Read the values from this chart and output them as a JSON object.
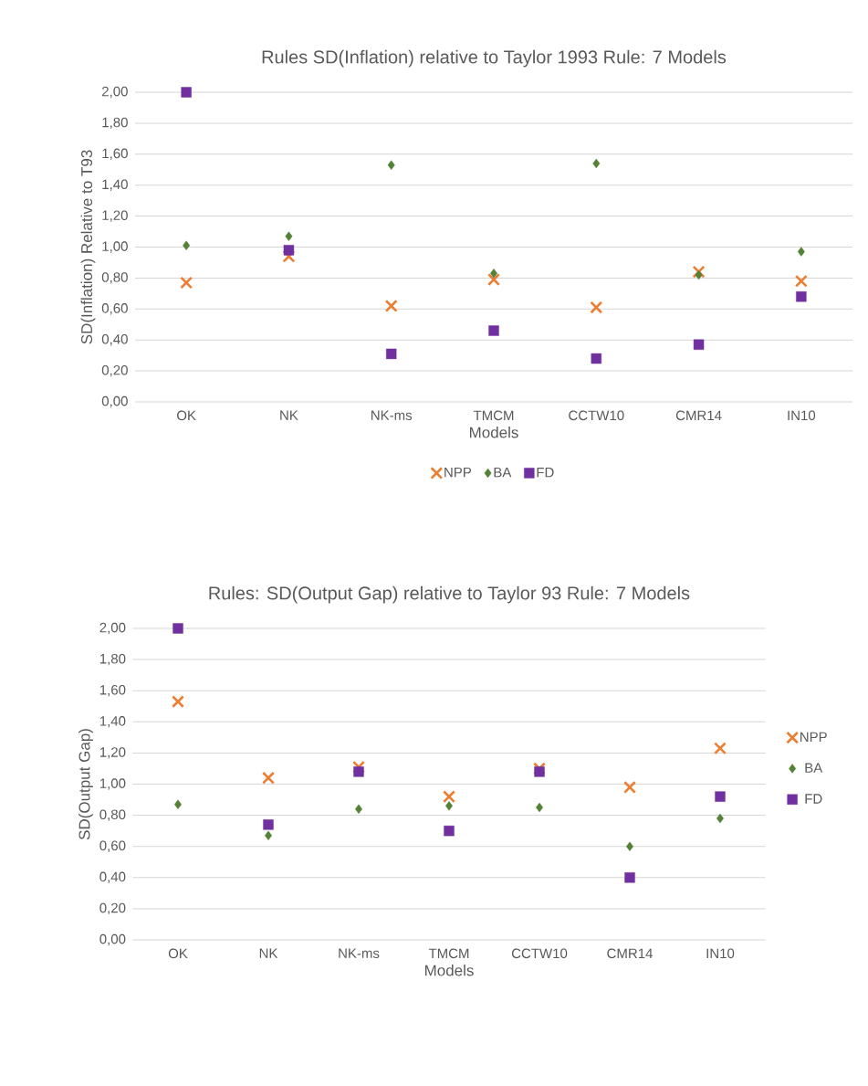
{
  "chart_data": [
    {
      "type": "scatter",
      "title": "Rules SD(Inflation) relative to Taylor 1993 Rule: 7 Models",
      "xlabel": "Models",
      "ylabel": "SD(Inflation) Relative to T93",
      "categories": [
        "OK",
        "NK",
        "NK-ms",
        "TMCM",
        "CCTW10",
        "CMR14",
        "IN10"
      ],
      "series": [
        {
          "name": "NPP",
          "color": "#ed7d31",
          "marker": "cross",
          "values": [
            0.77,
            0.94,
            0.62,
            0.79,
            0.61,
            0.84,
            0.78
          ]
        },
        {
          "name": "BA",
          "color": "#548235",
          "marker": "diamond",
          "values": [
            1.01,
            1.07,
            1.53,
            0.83,
            1.54,
            0.82,
            0.97
          ]
        },
        {
          "name": "FD",
          "color": "#7030a0",
          "marker": "square",
          "values": [
            2.0,
            0.98,
            0.31,
            0.46,
            0.28,
            0.37,
            0.68
          ]
        }
      ],
      "ylim": [
        0,
        2
      ],
      "yticks": [
        {
          "value": 0,
          "label": "0,00"
        },
        {
          "value": 0.2,
          "label": "0,20"
        },
        {
          "value": 0.4,
          "label": "0,40"
        },
        {
          "value": 0.6,
          "label": "0,60"
        },
        {
          "value": 0.8,
          "label": "0,80"
        },
        {
          "value": 1.0,
          "label": "1,00"
        },
        {
          "value": 1.2,
          "label": "1,20"
        },
        {
          "value": 1.4,
          "label": "1,40"
        },
        {
          "value": 1.6,
          "label": "1,60"
        },
        {
          "value": 1.8,
          "label": "1,80"
        },
        {
          "value": 2.0,
          "label": "2,00"
        }
      ],
      "grid": "y",
      "legend": "bottom"
    },
    {
      "type": "scatter",
      "title": "Rules: SD(Output Gap) relative to Taylor 93 Rule: 7 Models",
      "xlabel": "Models",
      "ylabel": "SD(Output Gap)",
      "categories": [
        "OK",
        "NK",
        "NK-ms",
        "TMCM",
        "CCTW10",
        "CMR14",
        "IN10"
      ],
      "series": [
        {
          "name": "NPP",
          "color": "#ed7d31",
          "marker": "cross",
          "values": [
            1.53,
            1.04,
            1.11,
            0.92,
            1.1,
            0.98,
            1.23
          ]
        },
        {
          "name": "BA",
          "color": "#548235",
          "marker": "diamond",
          "values": [
            0.87,
            0.67,
            0.84,
            0.86,
            0.85,
            0.6,
            0.78
          ]
        },
        {
          "name": "FD",
          "color": "#7030a0",
          "marker": "square",
          "values": [
            2.0,
            0.74,
            1.08,
            0.7,
            1.08,
            0.4,
            0.92
          ]
        }
      ],
      "ylim": [
        0,
        2
      ],
      "yticks": [
        {
          "value": 0,
          "label": "0,00"
        },
        {
          "value": 0.2,
          "label": "0,20"
        },
        {
          "value": 0.4,
          "label": "0,40"
        },
        {
          "value": 0.6,
          "label": "0,60"
        },
        {
          "value": 0.8,
          "label": "0,80"
        },
        {
          "value": 1.0,
          "label": "1,00"
        },
        {
          "value": 1.2,
          "label": "1,20"
        },
        {
          "value": 1.4,
          "label": "1,40"
        },
        {
          "value": 1.6,
          "label": "1,60"
        },
        {
          "value": 1.8,
          "label": "1,80"
        },
        {
          "value": 2.0,
          "label": "2,00"
        }
      ],
      "grid": "y",
      "legend": "right"
    }
  ]
}
